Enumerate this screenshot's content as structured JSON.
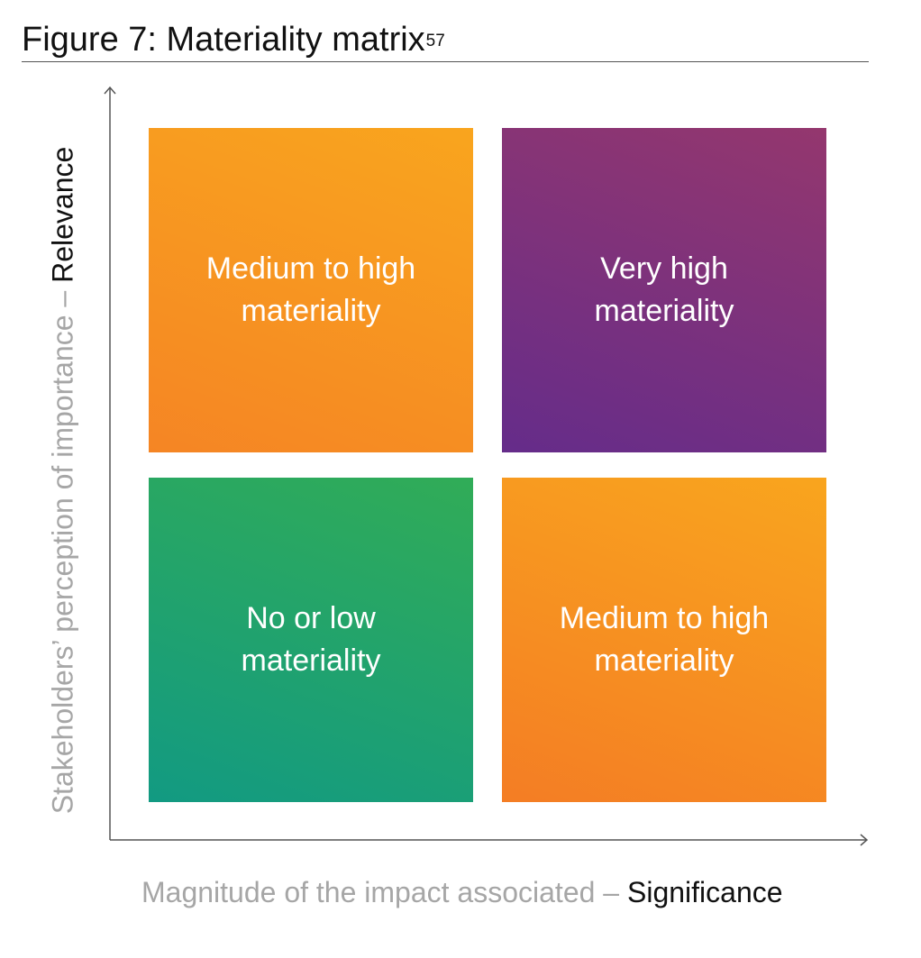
{
  "figure": {
    "title": "Figure 7: Materiality matrix",
    "title_footnote": "57"
  },
  "axes": {
    "y_label_prefix": "Stakeholders’ perception of importance – ",
    "y_label_emphasis": "Relevance",
    "x_label_prefix": "Magnitude of the impact associated – ",
    "x_label_emphasis": "Significance"
  },
  "quadrants": {
    "top_left": {
      "label": "Medium to high\nmateriality",
      "color_start": "#f9a51e",
      "color_end": "#f58524"
    },
    "top_right": {
      "label": "Very high\nmateriality",
      "color_start": "#94376e",
      "color_end": "#652c8a"
    },
    "bottom_left": {
      "label": "No or low\nmateriality",
      "color_start": "#31ac57",
      "color_end": "#129a82"
    },
    "bottom_right": {
      "label": "Medium to high\nmateriality",
      "color_start": "#f9a51e",
      "color_end": "#f47d24"
    }
  }
}
